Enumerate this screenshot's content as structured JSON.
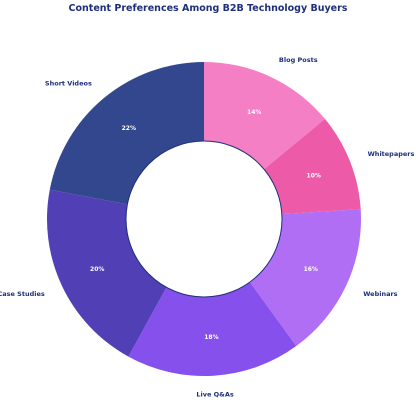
{
  "chart_data": {
    "type": "pie",
    "title": "Content Preferences Among B2B Technology Buyers",
    "donut": true,
    "legend": "none",
    "categories": [
      "Blog Posts",
      "Whitepapers",
      "Webinars",
      "Live Q&As",
      "Case Studies",
      "Short Videos"
    ],
    "values": [
      14,
      10,
      16,
      18,
      20,
      22
    ],
    "labels": [
      "14%",
      "10%",
      "16%",
      "18%",
      "20%",
      "22%"
    ],
    "colors": [
      "#f47fc4",
      "#ec5aa8",
      "#b06ef5",
      "#8650ec",
      "#5140b5",
      "#33478f"
    ]
  }
}
